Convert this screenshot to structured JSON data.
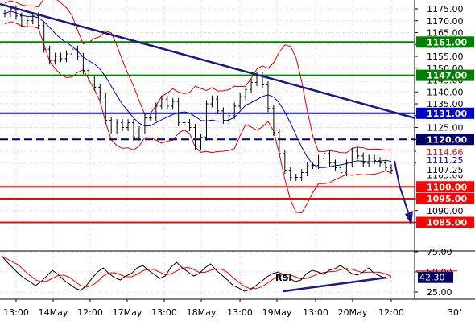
{
  "chart_data": [
    {
      "type": "line",
      "title": "",
      "xlabel": "",
      "ylabel": "",
      "ylim": [
        1081,
        1178
      ],
      "y_ticks": [
        1175,
        1170,
        1165,
        1160,
        1155,
        1150,
        1145,
        1140,
        1135,
        1130,
        1125,
        1120,
        1115,
        1110,
        1105,
        1100,
        1095,
        1090,
        1085
      ],
      "x_tick_labels": [
        "13:00",
        "14May",
        "12:00",
        "17May",
        "13:00",
        "18May",
        "13:00",
        "19May",
        "13:00",
        "20May",
        "12:00"
      ],
      "corner_label": "30'",
      "grid": true,
      "overlays": [
        "bollinger-bands",
        "moving-average"
      ],
      "series": [
        {
          "values": [
            1173,
            1175,
            1172,
            1169,
            1170,
            1172,
            1168,
            1158,
            1153,
            1155,
            1154,
            1156,
            1158,
            1155,
            1149,
            1145,
            1142,
            1138,
            1128,
            1124,
            1127,
            1125,
            1127,
            1121,
            1124,
            1129,
            1129,
            1134,
            1137,
            1134,
            1136,
            1127,
            1127,
            1125,
            1117,
            1121,
            1135,
            1137,
            1132,
            1128,
            1130,
            1134,
            1138,
            1141,
            1144,
            1147,
            1143,
            1133,
            1123,
            1114,
            1107,
            1104,
            1104,
            1106,
            1109,
            1109,
            1112,
            1114,
            1110,
            1108,
            1106,
            1110,
            1115,
            1113,
            1110,
            1112,
            1111,
            1110,
            1108,
            1107
          ]
        }
      ],
      "lines": [
        {
          "label": "1161.00",
          "value": 1161,
          "color": "#008000",
          "style": "solid"
        },
        {
          "label": "1147.00",
          "value": 1147,
          "color": "#008000",
          "style": "solid"
        },
        {
          "label": "1131.00",
          "value": 1131,
          "color": "#0000cc",
          "style": "solid"
        },
        {
          "label": "1120.00",
          "value": 1120,
          "color": "#000066",
          "style": "dashed"
        },
        {
          "label": "1100.00",
          "value": 1100,
          "color": "#ff0000",
          "style": "solid"
        },
        {
          "label": "1095.00",
          "value": 1095,
          "color": "#ff0000",
          "style": "solid"
        },
        {
          "label": "1085.00",
          "value": 1085,
          "color": "#ff0000",
          "style": "solid"
        }
      ],
      "price_markers": [
        {
          "label": "1114.66",
          "value": 1114.66,
          "color": "#ff0000"
        },
        {
          "label": "1111.25",
          "value": 1111.25,
          "color": "#0000cc"
        },
        {
          "label": "1107.25",
          "value": 1107.25,
          "color": "#000000"
        }
      ],
      "colors": {
        "trendline": "#1a1a80",
        "arrow": "#1a1a80",
        "bands": "#dd0000",
        "average": "#0000cc",
        "price": "#000000"
      }
    },
    {
      "type": "line",
      "title": "RSI",
      "ylim": [
        15,
        85
      ],
      "y_ticks": [
        75,
        50,
        25
      ],
      "series": [
        {
          "values": [
            70,
            62,
            55,
            48,
            42,
            38,
            33,
            38,
            45,
            52,
            47,
            40,
            35,
            30,
            27,
            33,
            42,
            50,
            55,
            48,
            43,
            40,
            45,
            48,
            55,
            58,
            52,
            47,
            42,
            45,
            56,
            62,
            55,
            50,
            45,
            48,
            55,
            60,
            52,
            46,
            40,
            33,
            30,
            26,
            28,
            33,
            38,
            44,
            48,
            50,
            46,
            42,
            38,
            40,
            48,
            52,
            50,
            47,
            52,
            54,
            58,
            53,
            48,
            46,
            50,
            55,
            48,
            45,
            42,
            43
          ]
        }
      ],
      "marker": {
        "label": "42.30",
        "value": 42.3
      },
      "colors": {
        "rsi": "#000000",
        "signal": "#ff0000",
        "trendline": "#1a1a80"
      }
    }
  ]
}
